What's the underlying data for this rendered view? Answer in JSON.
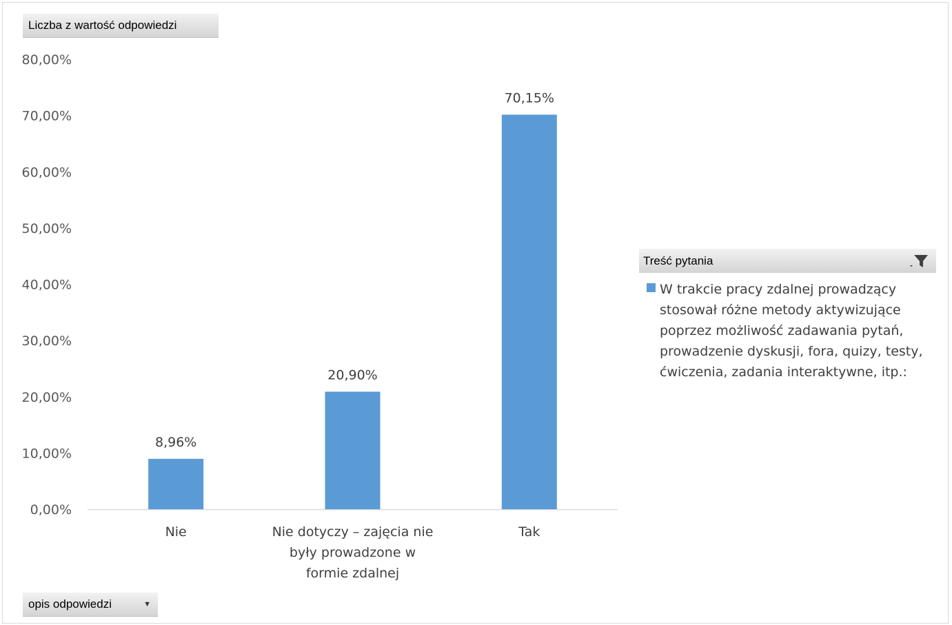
{
  "pivot": {
    "value_field_label": "Liczba z wartość odpowiedzi",
    "axis_field_label": "opis odpowiedzi",
    "legend_field_label": "Treść pytania"
  },
  "colors": {
    "bar": "#5b9bd5",
    "axis": "#d9d9d9"
  },
  "chart_data": {
    "type": "bar",
    "categories": [
      [
        "Nie"
      ],
      [
        "Nie dotyczy – zajęcia nie",
        "były prowadzone w",
        "formie zdalnej"
      ],
      [
        "Tak"
      ]
    ],
    "series": [
      {
        "name": "W trakcie pracy zdalnej prowadzący stosował różne metody aktywizujące poprzez możliwość zadawania pytań, prowadzenie dyskusji, fora, quizy, testy, ćwiczenia, zadania interaktywne, itp.:",
        "values": [
          8.96,
          20.9,
          70.15
        ],
        "value_labels": [
          "8,96%",
          "20,90%",
          "70,15%"
        ]
      }
    ],
    "ylim": [
      0,
      80
    ],
    "yticks": [
      "0,00%",
      "10,00%",
      "20,00%",
      "30,00%",
      "40,00%",
      "50,00%",
      "60,00%",
      "70,00%",
      "80,00%"
    ],
    "legend_lines": [
      "W trakcie pracy zdalnej prowadzący",
      "stosował różne metody aktywizujące",
      "poprzez możliwość zadawania pytań,",
      "prowadzenie dyskusji, fora, quizy, testy,",
      "ćwiczenia, zadania interaktywne, itp.:"
    ],
    "grid": false,
    "legend_position": "right"
  }
}
